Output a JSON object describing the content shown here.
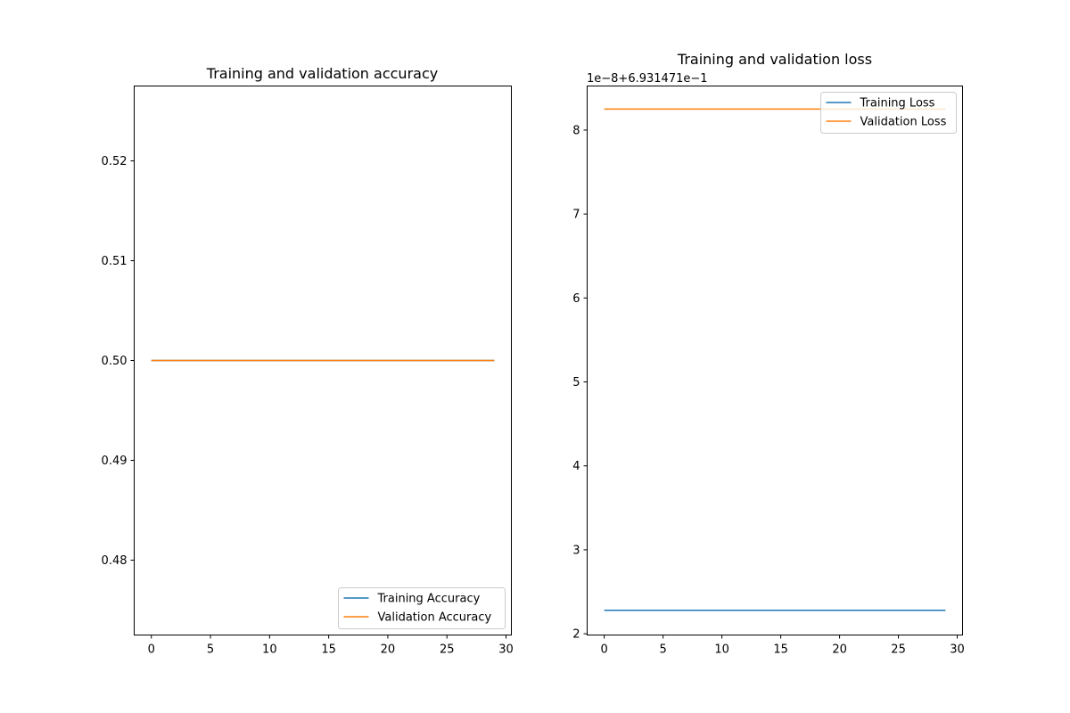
{
  "chart_data": [
    {
      "type": "line",
      "title": "Training and validation accuracy",
      "x": [
        0,
        1,
        2,
        3,
        4,
        5,
        6,
        7,
        8,
        9,
        10,
        11,
        12,
        13,
        14,
        15,
        16,
        17,
        18,
        19,
        20,
        21,
        22,
        23,
        24,
        25,
        26,
        27,
        28,
        29
      ],
      "xlim": [
        -1.45,
        30.45
      ],
      "ylim": [
        0.4725,
        0.5275
      ],
      "xticks": [
        0,
        5,
        10,
        15,
        20,
        25,
        30
      ],
      "yticks": [
        0.48,
        0.49,
        0.5,
        0.51,
        0.52
      ],
      "xtick_labels": [
        "0",
        "5",
        "10",
        "15",
        "20",
        "25",
        "30"
      ],
      "ytick_labels": [
        "0.48",
        "0.49",
        "0.50",
        "0.51",
        "0.52"
      ],
      "legend_position": "lower-right",
      "grid": false,
      "series": [
        {
          "name": "Training Accuracy",
          "color": "#1f77b4",
          "values": [
            0.5,
            0.5,
            0.5,
            0.5,
            0.5,
            0.5,
            0.5,
            0.5,
            0.5,
            0.5,
            0.5,
            0.5,
            0.5,
            0.5,
            0.5,
            0.5,
            0.5,
            0.5,
            0.5,
            0.5,
            0.5,
            0.5,
            0.5,
            0.5,
            0.5,
            0.5,
            0.5,
            0.5,
            0.5,
            0.5
          ]
        },
        {
          "name": "Validation Accuracy",
          "color": "#ff7f0e",
          "values": [
            0.5,
            0.5,
            0.5,
            0.5,
            0.5,
            0.5,
            0.5,
            0.5,
            0.5,
            0.5,
            0.5,
            0.5,
            0.5,
            0.5,
            0.5,
            0.5,
            0.5,
            0.5,
            0.5,
            0.5,
            0.5,
            0.5,
            0.5,
            0.5,
            0.5,
            0.5,
            0.5,
            0.5,
            0.5,
            0.5
          ]
        }
      ]
    },
    {
      "type": "line",
      "title": "Training and validation loss",
      "axis_offset_text": "1e−8+6.931471e−1",
      "x": [
        0,
        1,
        2,
        3,
        4,
        5,
        6,
        7,
        8,
        9,
        10,
        11,
        12,
        13,
        14,
        15,
        16,
        17,
        18,
        19,
        20,
        21,
        22,
        23,
        24,
        25,
        26,
        27,
        28,
        29
      ],
      "xlim": [
        -1.45,
        30.45
      ],
      "ylim": [
        1.985,
        8.525
      ],
      "xticks": [
        0,
        5,
        10,
        15,
        20,
        25,
        30
      ],
      "yticks": [
        2,
        3,
        4,
        5,
        6,
        7,
        8
      ],
      "xtick_labels": [
        "0",
        "5",
        "10",
        "15",
        "20",
        "25",
        "30"
      ],
      "ytick_labels": [
        "2",
        "3",
        "4",
        "5",
        "6",
        "7",
        "8"
      ],
      "legend_position": "upper-right",
      "grid": false,
      "series": [
        {
          "name": "Training Loss",
          "color": "#1f77b4",
          "values": [
            2.28,
            2.28,
            2.28,
            2.28,
            2.28,
            2.28,
            2.28,
            2.28,
            2.28,
            2.28,
            2.28,
            2.28,
            2.28,
            2.28,
            2.28,
            2.28,
            2.28,
            2.28,
            2.28,
            2.28,
            2.28,
            2.28,
            2.28,
            2.28,
            2.28,
            2.28,
            2.28,
            2.28,
            2.28,
            2.28
          ]
        },
        {
          "name": "Validation Loss",
          "color": "#ff7f0e",
          "values": [
            8.25,
            8.25,
            8.25,
            8.25,
            8.25,
            8.25,
            8.25,
            8.25,
            8.25,
            8.25,
            8.25,
            8.25,
            8.25,
            8.25,
            8.25,
            8.25,
            8.25,
            8.25,
            8.25,
            8.25,
            8.25,
            8.25,
            8.25,
            8.25,
            8.25,
            8.25,
            8.25,
            8.25,
            8.25,
            8.25
          ]
        }
      ]
    }
  ]
}
